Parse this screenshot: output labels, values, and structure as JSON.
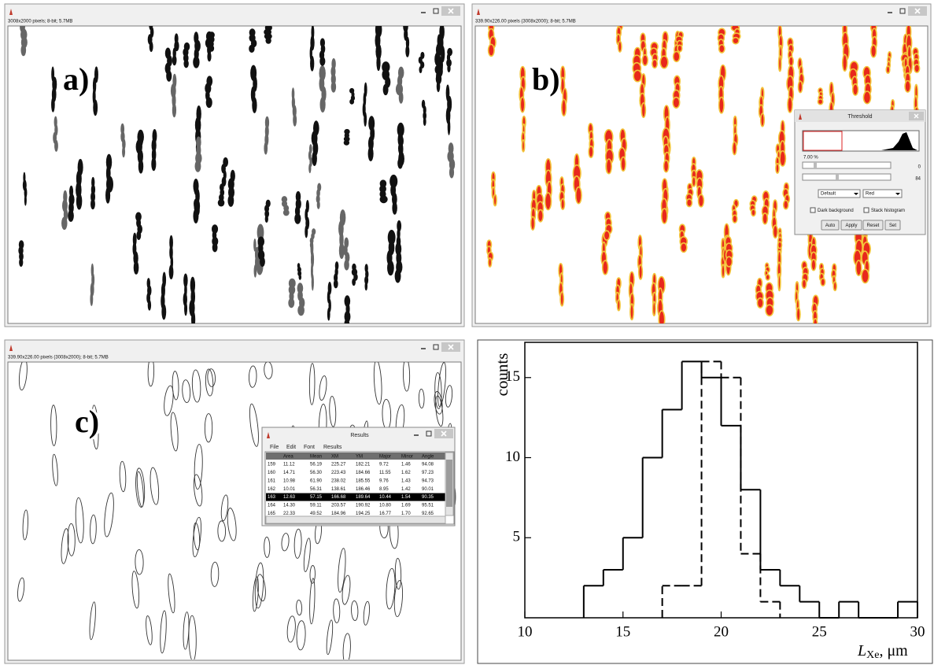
{
  "windows": [
    {
      "info": "3008x2000 pixels; 8-bit; 5.7MB",
      "label": "a)"
    },
    {
      "info": "339.90x226.00 pixels (3008x2000); 8-bit; 5.7MB",
      "label": "b)"
    },
    {
      "info": "339.90x226.00 pixels (3008x2000); 8-bit; 5.7MB",
      "label": "c)"
    }
  ],
  "threshold": {
    "title": "Threshold",
    "percent": "7.00 %",
    "slider_values": [
      0,
      84
    ],
    "method": "Default",
    "mode": "Red",
    "checkboxes": [
      "Dark background",
      "Stack histogram"
    ],
    "buttons": [
      "Auto",
      "Apply",
      "Reset",
      "Set"
    ]
  },
  "results": {
    "title": "Results",
    "menu": [
      "File",
      "Edit",
      "Font",
      "Results"
    ],
    "columns": [
      "Area",
      "Mean",
      "XM",
      "YM",
      "Major",
      "Minor",
      "Angle"
    ],
    "selected_row": 4,
    "rows": [
      [
        "159",
        "11.12",
        "56.19",
        "225.27",
        "182.21",
        "9.72",
        "1.46",
        "94.08"
      ],
      [
        "160",
        "14.71",
        "56.30",
        "223.43",
        "184.66",
        "11.55",
        "1.62",
        "97.23"
      ],
      [
        "161",
        "10.98",
        "61.90",
        "238.02",
        "185.55",
        "9.76",
        "1.43",
        "94.73"
      ],
      [
        "162",
        "10.01",
        "56.31",
        "138.61",
        "186.46",
        "8.95",
        "1.42",
        "90.01"
      ],
      [
        "163",
        "12.63",
        "57.15",
        "166.68",
        "189.64",
        "10.44",
        "1.54",
        "90.35"
      ],
      [
        "164",
        "14.30",
        "59.11",
        "203.57",
        "190.92",
        "10.80",
        "1.69",
        "95.51"
      ],
      [
        "165",
        "22.33",
        "49.52",
        "184.96",
        "194.25",
        "16.77",
        "1.70",
        "92.65"
      ]
    ]
  },
  "chart_data": {
    "type": "histogram",
    "ylabel": "counts",
    "xlabel": {
      "symbol": "L",
      "subscript": "Xe",
      "unit": ", μm"
    },
    "xlim": [
      10,
      30
    ],
    "ylim": [
      0,
      17.2
    ],
    "xticks": [
      10,
      15,
      20,
      25,
      30
    ],
    "yticks": [
      5,
      10,
      15
    ],
    "series": [
      {
        "style": "solid",
        "color": "#000000",
        "bins": [
          13,
          14,
          15,
          16,
          17,
          18,
          19,
          20,
          21,
          22,
          23,
          24,
          25,
          26,
          27,
          28,
          29,
          30
        ],
        "counts": [
          2,
          3,
          5,
          10,
          13,
          16,
          15,
          12,
          8,
          3,
          2,
          1,
          0,
          1,
          0,
          0,
          1
        ]
      },
      {
        "style": "dashed",
        "color": "#000000",
        "bins": [
          17,
          18,
          19,
          20,
          21,
          22,
          23
        ],
        "counts": [
          2,
          2,
          16,
          15,
          4,
          1
        ]
      }
    ]
  }
}
